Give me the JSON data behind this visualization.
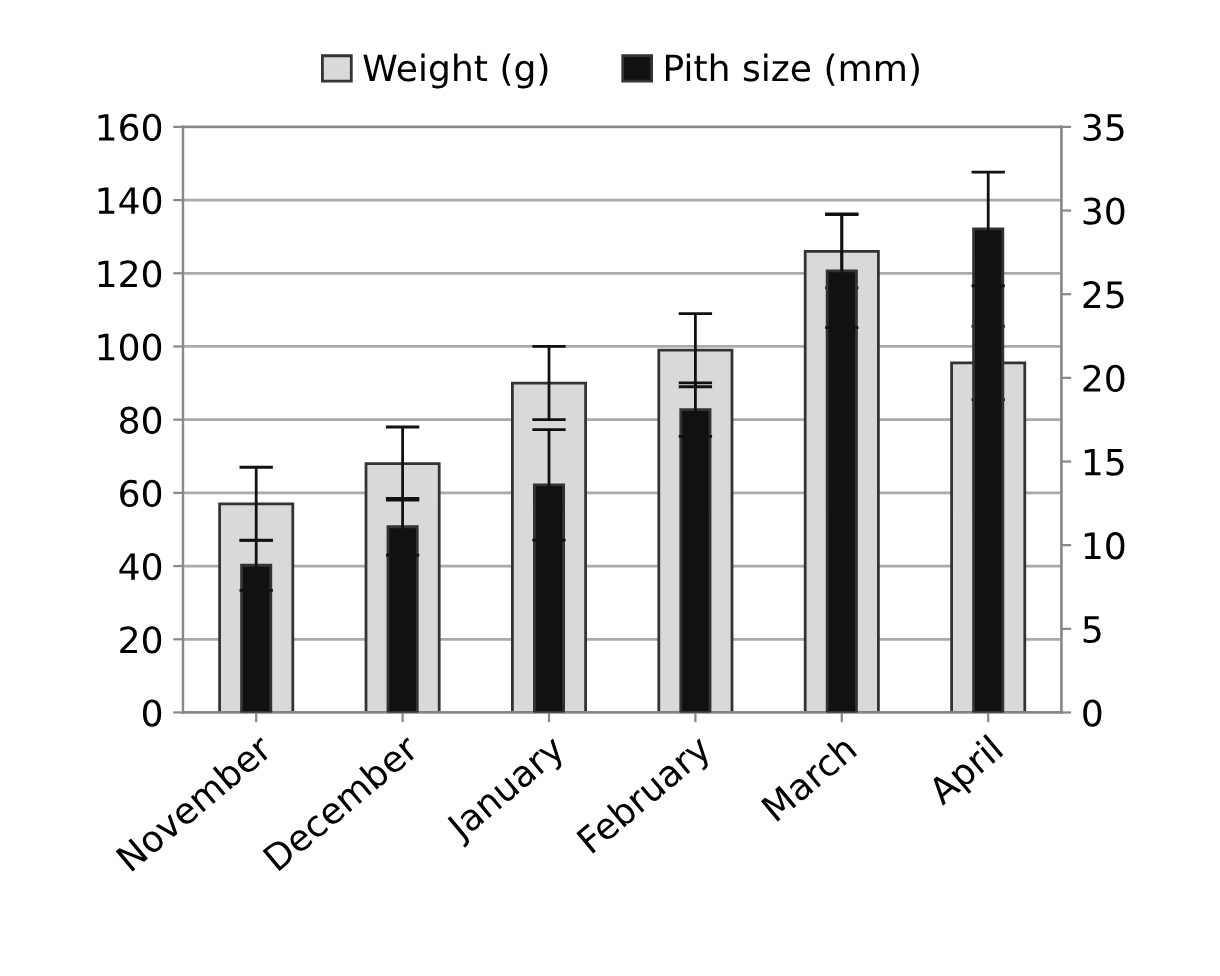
{
  "chart_data": {
    "type": "bar",
    "categories": [
      "November",
      "December",
      "January",
      "February",
      "March",
      "April"
    ],
    "series": [
      {
        "name": "Weight (g)",
        "color": "#d9d9d9",
        "values": [
          57,
          68,
          90,
          99,
          126,
          95.5
        ],
        "errors": [
          10,
          10,
          10,
          10,
          10,
          10
        ]
      },
      {
        "name": "Pith size (mm)",
        "color": "#111111",
        "axis": "y2",
        "values": [
          8.8,
          11.1,
          13.6,
          18.1,
          26.4,
          28.9
        ],
        "errors": [
          1.5,
          1.7,
          3.3,
          1.6,
          3.4,
          3.4
        ]
      }
    ],
    "ylim": [
      0,
      160
    ],
    "yticks": [
      0,
      20,
      40,
      60,
      80,
      100,
      120,
      140,
      160
    ],
    "y2lim": [
      0,
      35
    ],
    "y2ticks": [
      0,
      5,
      10,
      15,
      20,
      25,
      30,
      35
    ],
    "grid": "y",
    "legend": "top"
  }
}
